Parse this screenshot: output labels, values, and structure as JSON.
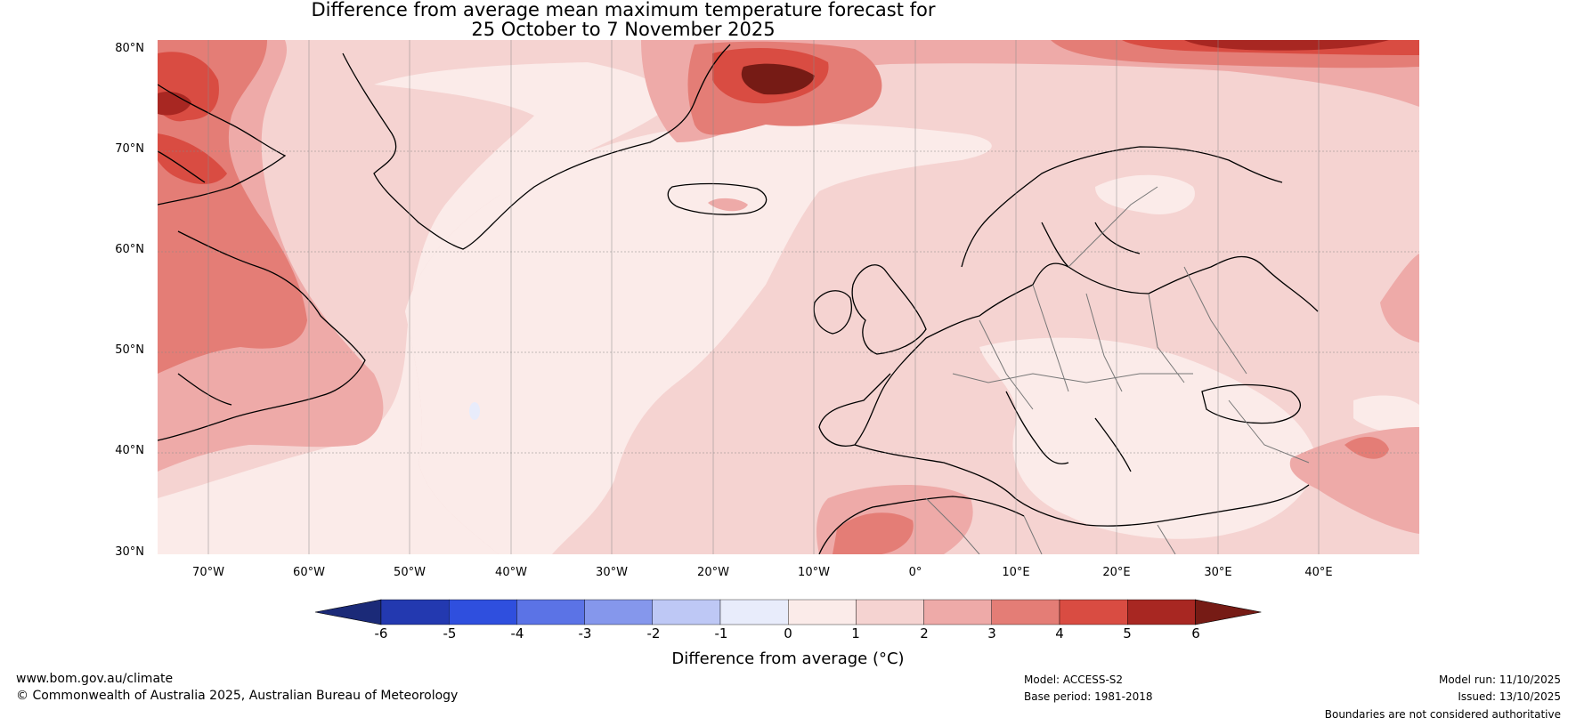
{
  "title": {
    "line1": "Difference from average mean maximum temperature forecast for",
    "line2": "25 October to 7 November 2025"
  },
  "map": {
    "lat_labels": [
      "80°N",
      "70°N",
      "60°N",
      "50°N",
      "40°N",
      "30°N"
    ],
    "lon_labels": [
      "70°W",
      "60°W",
      "50°W",
      "40°W",
      "30°W",
      "20°W",
      "10°W",
      "0°",
      "10°E",
      "20°E",
      "30°E",
      "40°E"
    ]
  },
  "colorbar": {
    "label": "Difference from average (°C)",
    "ticks": [
      "-6",
      "-5",
      "-4",
      "-3",
      "-2",
      "-1",
      "0",
      "1",
      "2",
      "3",
      "4",
      "5",
      "6"
    ],
    "colors": [
      "#1b2a78",
      "#2339b0",
      "#2f4fde",
      "#5b73e6",
      "#8597ec",
      "#bec8f5",
      "#e8ecfb",
      "#fbebe9",
      "#f5d3d1",
      "#eeaaa8",
      "#e47d76",
      "#d94c42",
      "#a82722",
      "#761b15"
    ]
  },
  "footer": {
    "url": "www.bom.gov.au/climate",
    "copyright": "© Commonwealth of Australia 2025, Australian Bureau of Meteorology",
    "model": "Model: ACCESS-S2",
    "base_period": "Base period: 1981-2018",
    "model_run": "Model run: 11/10/2025",
    "issued": "Issued: 13/10/2025",
    "disclaimer": "Boundaries are not considered authoritative"
  }
}
